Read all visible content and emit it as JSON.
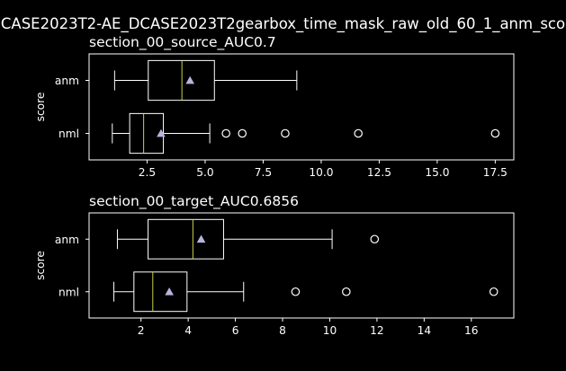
{
  "suptitle": "CASE2023T2-AE_DCASE2023T2gearbox_time_mask_raw_old_60_1_anm_sco",
  "colors": {
    "background": "#000000",
    "foreground": "#ffffff",
    "median": "#c8d24a",
    "mean_marker": "#b8b4dc",
    "box": "#ffffff"
  },
  "chart_data": [
    {
      "type": "box",
      "title": "section_00_source_AUC0.7",
      "ylabel": "score",
      "xlabel": "",
      "categories": [
        "anm",
        "nml"
      ],
      "xlim": [
        0.0,
        18.3
      ],
      "xticks": [
        2.5,
        5.0,
        7.5,
        10.0,
        12.5,
        15.0,
        17.5
      ],
      "xtick_labels": [
        "2.5",
        "5.0",
        "7.5",
        "10.0",
        "12.5",
        "15.0",
        "17.5"
      ],
      "boxes": [
        {
          "name": "anm",
          "whislo": 1.1,
          "q1": 2.55,
          "med": 4.0,
          "q3": 5.4,
          "whishi": 8.95,
          "mean": 4.35,
          "fliers": []
        },
        {
          "name": "nml",
          "whislo": 1.0,
          "q1": 1.75,
          "med": 2.35,
          "q3": 3.2,
          "whishi": 5.2,
          "mean": 3.1,
          "fliers": [
            5.9,
            6.6,
            8.45,
            11.6,
            17.5
          ]
        }
      ]
    },
    {
      "type": "box",
      "title": "section_00_target_AUC0.6856",
      "ylabel": "score",
      "xlabel": "",
      "categories": [
        "anm",
        "nml"
      ],
      "xlim": [
        -0.2,
        17.8
      ],
      "xticks": [
        2,
        4,
        6,
        8,
        10,
        12,
        14,
        16
      ],
      "xtick_labels": [
        "2",
        "4",
        "6",
        "8",
        "10",
        "12",
        "14",
        "16"
      ],
      "boxes": [
        {
          "name": "anm",
          "whislo": 1.0,
          "q1": 2.3,
          "med": 4.2,
          "q3": 5.5,
          "whishi": 10.1,
          "mean": 4.55,
          "fliers": [
            11.9
          ]
        },
        {
          "name": "nml",
          "whislo": 0.85,
          "q1": 1.7,
          "med": 2.5,
          "q3": 3.95,
          "whishi": 6.35,
          "mean": 3.2,
          "fliers": [
            8.55,
            10.7,
            16.95
          ]
        }
      ]
    }
  ]
}
